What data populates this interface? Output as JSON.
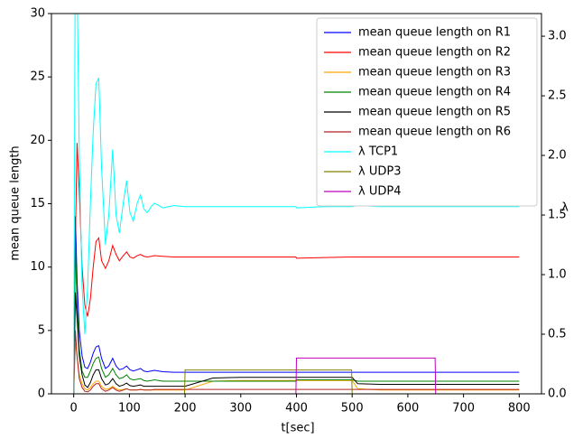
{
  "chart_data": {
    "type": "line",
    "xlabel": "t[sec]",
    "ylabel": "mean queue length",
    "y2label": "λ",
    "x": [
      0,
      3,
      6,
      10,
      15,
      20,
      25,
      30,
      35,
      40,
      45,
      50,
      57,
      63,
      70,
      76,
      82,
      89,
      95,
      101,
      107,
      114,
      120,
      126,
      132,
      139,
      145,
      160,
      180,
      199,
      200,
      250,
      300,
      350,
      399,
      400,
      450,
      499,
      500,
      510,
      550,
      600,
      649,
      650,
      700,
      750,
      800
    ],
    "xlim": [
      -40,
      840
    ],
    "xticks": [
      0,
      100,
      200,
      300,
      400,
      500,
      600,
      700,
      800
    ],
    "ylim": [
      0,
      30
    ],
    "yticks": [
      0,
      5,
      10,
      15,
      20,
      25,
      30
    ],
    "y2lim": [
      0,
      3.19
    ],
    "y2ticks": [
      {
        "value": 0,
        "label": "0.0"
      },
      {
        "value": 0.5,
        "label": "0.5"
      },
      {
        "value": 1,
        "label": "1.0"
      },
      {
        "value": 1.5,
        "label": "1.5"
      },
      {
        "value": 2,
        "label": "2.0"
      },
      {
        "value": 2.5,
        "label": "2.5"
      },
      {
        "value": 3,
        "label": "3.0"
      }
    ],
    "legend": "upper right",
    "series": [
      {
        "name": "mean queue length on R1",
        "color": "#0000ff",
        "values": [
          0,
          14,
          9,
          5,
          3,
          2.1,
          2,
          2.5,
          3.2,
          3.7,
          3.8,
          2.8,
          2.0,
          2.2,
          2.8,
          2.2,
          1.9,
          2.0,
          2.2,
          1.9,
          1.8,
          1.9,
          2.0,
          1.8,
          1.75,
          1.8,
          1.85,
          1.75,
          1.7,
          1.7,
          1.7,
          1.7,
          1.7,
          1.7,
          1.7,
          1.7,
          1.7,
          1.7,
          1.7,
          1.7,
          1.7,
          1.7,
          1.7,
          1.7,
          1.7,
          1.7,
          1.7
        ]
      },
      {
        "name": "mean queue length on R2",
        "color": "#ff0000",
        "values": [
          0,
          12,
          19.8,
          16,
          10,
          7,
          6.1,
          7.5,
          10,
          12,
          12.3,
          10.5,
          9.9,
          10.5,
          11.7,
          11,
          10.5,
          10.9,
          11.2,
          10.8,
          10.7,
          10.9,
          11,
          10.85,
          10.8,
          10.85,
          10.9,
          10.85,
          10.8,
          10.8,
          10.8,
          10.8,
          10.8,
          10.8,
          10.8,
          10.7,
          10.75,
          10.8,
          10.8,
          10.8,
          10.8,
          10.8,
          10.8,
          10.8,
          10.8,
          10.8,
          10.8
        ]
      },
      {
        "name": "mean queue length on R3",
        "color": "#ffa500",
        "values": [
          0,
          4,
          3,
          1.5,
          0.8,
          0.4,
          0.3,
          0.5,
          0.8,
          1.0,
          1.0,
          0.6,
          0.35,
          0.4,
          0.6,
          0.4,
          0.3,
          0.35,
          0.4,
          0.3,
          0.3,
          0.3,
          0.35,
          0.3,
          0.3,
          0.3,
          0.3,
          0.3,
          0.3,
          0.3,
          0.3,
          1.0,
          1.05,
          1.05,
          1.05,
          1.05,
          1.05,
          1.05,
          1.05,
          0.4,
          0.3,
          0.3,
          0.3,
          0.3,
          0.3,
          0.3,
          0.3
        ]
      },
      {
        "name": "mean queue length on R4",
        "color": "#008000",
        "values": [
          0,
          12,
          7,
          3.5,
          1.8,
          1.3,
          1.3,
          1.8,
          2.4,
          2.8,
          2.9,
          2.0,
          1.3,
          1.5,
          2.0,
          1.5,
          1.2,
          1.3,
          1.5,
          1.2,
          1.1,
          1.15,
          1.2,
          1.05,
          1.0,
          1.05,
          1.1,
          1.0,
          1.0,
          1.0,
          1.0,
          1.0,
          1.0,
          1.0,
          1.0,
          1.1,
          1.1,
          1.1,
          1.1,
          1.0,
          1.0,
          1.0,
          1.0,
          1.0,
          1.0,
          1.0,
          1.0
        ]
      },
      {
        "name": "mean queue length on R5",
        "color": "#000000",
        "values": [
          0,
          8,
          6,
          3,
          1.5,
          0.7,
          0.5,
          0.9,
          1.5,
          1.9,
          1.9,
          1.2,
          0.7,
          0.8,
          1.2,
          0.8,
          0.6,
          0.7,
          0.85,
          0.65,
          0.6,
          0.65,
          0.7,
          0.6,
          0.6,
          0.6,
          0.6,
          0.6,
          0.6,
          0.6,
          0.6,
          1.25,
          1.3,
          1.3,
          1.3,
          1.3,
          1.3,
          1.3,
          1.3,
          0.8,
          0.75,
          0.75,
          0.75,
          0.75,
          0.75,
          0.75,
          0.75
        ]
      },
      {
        "name": "mean queue length on R6",
        "color": "#b22222",
        "values": [
          0,
          5,
          3,
          1.2,
          0.5,
          0.2,
          0.15,
          0.3,
          0.6,
          0.8,
          0.8,
          0.4,
          0.2,
          0.3,
          0.5,
          0.3,
          0.2,
          0.3,
          0.4,
          0.3,
          0.3,
          0.3,
          0.35,
          0.3,
          0.3,
          0.3,
          0.35,
          0.35,
          0.35,
          0.35,
          0.35,
          0.35,
          0.35,
          0.35,
          0.35,
          0.35,
          0.35,
          0.35,
          0.35,
          0.35,
          0.35,
          0.35,
          0.35,
          0.35,
          0.35,
          0.35,
          0.35
        ]
      },
      {
        "name": "λ TCP1",
        "color": "#00ffff",
        "axis": "y2",
        "values": [
          0,
          4,
          3.5,
          2.0,
          0.9,
          0.5,
          0.9,
          1.6,
          2.2,
          2.6,
          2.65,
          1.9,
          1.25,
          1.5,
          2.05,
          1.5,
          1.35,
          1.6,
          1.79,
          1.52,
          1.45,
          1.6,
          1.67,
          1.55,
          1.52,
          1.57,
          1.6,
          1.56,
          1.58,
          1.57,
          1.57,
          1.57,
          1.57,
          1.57,
          1.57,
          1.56,
          1.57,
          1.57,
          1.57,
          1.58,
          1.57,
          1.57,
          1.57,
          1.57,
          1.57,
          1.57,
          1.57
        ]
      },
      {
        "name": "λ UDP3",
        "color": "#808000",
        "axis": "y2",
        "values": [
          0,
          0,
          0,
          0,
          0,
          0,
          0,
          0,
          0,
          0,
          0,
          0,
          0,
          0,
          0,
          0,
          0,
          0,
          0,
          0,
          0,
          0,
          0,
          0,
          0,
          0,
          0,
          0,
          0,
          0,
          0.2,
          0.2,
          0.2,
          0.2,
          0.2,
          0.2,
          0.2,
          0.2,
          0,
          0,
          0,
          0,
          0,
          0,
          0,
          0,
          0
        ]
      },
      {
        "name": "λ UDP4",
        "color": "#bf00bf",
        "axis": "y2",
        "values": [
          0,
          0,
          0,
          0,
          0,
          0,
          0,
          0,
          0,
          0,
          0,
          0,
          0,
          0,
          0,
          0,
          0,
          0,
          0,
          0,
          0,
          0,
          0,
          0,
          0,
          0,
          0,
          0,
          0,
          0,
          0,
          0,
          0,
          0,
          0,
          0.3,
          0.3,
          0.3,
          0.3,
          0.3,
          0.3,
          0.3,
          0.3,
          0,
          0,
          0,
          0
        ]
      }
    ]
  }
}
